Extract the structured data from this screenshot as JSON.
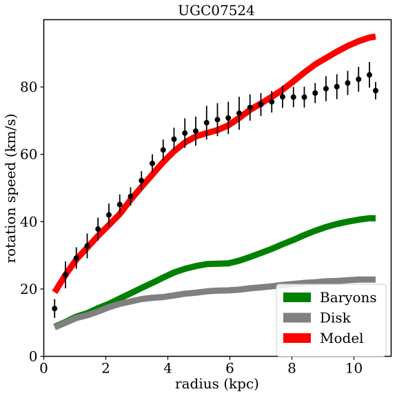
{
  "chart_data": {
    "type": "line",
    "title": "UGC07524",
    "xlabel": "radius (kpc)",
    "ylabel": "rotation speed (km/s)",
    "xlim": [
      0,
      11.2
    ],
    "ylim": [
      0,
      100
    ],
    "xticks": [
      0,
      2,
      4,
      6,
      8,
      10
    ],
    "yticks": [
      0,
      20,
      40,
      60,
      80
    ],
    "legend_position": "lower-right",
    "grid": false,
    "series": [
      {
        "name": "Baryons",
        "kind": "band",
        "color": "#008000",
        "x": [
          0.35,
          0.7,
          1.05,
          1.4,
          1.75,
          2.1,
          2.45,
          2.8,
          3.15,
          3.5,
          3.85,
          4.2,
          4.55,
          4.9,
          5.25,
          5.6,
          5.95,
          6.3,
          6.65,
          7.0,
          7.35,
          7.7,
          8.05,
          8.4,
          8.75,
          9.1,
          9.45,
          9.8,
          10.15,
          10.5,
          10.7
        ],
        "y": [
          8.8,
          10.2,
          11.8,
          12.8,
          14.3,
          15.6,
          17.2,
          18.7,
          20.3,
          21.8,
          23.4,
          24.9,
          26.0,
          26.8,
          27.4,
          27.5,
          27.6,
          28.4,
          29.5,
          30.7,
          31.9,
          33.3,
          34.6,
          36.0,
          37.3,
          38.4,
          39.3,
          40.0,
          40.6,
          41.0,
          41.0
        ]
      },
      {
        "name": "Disk",
        "kind": "band",
        "color": "#808080",
        "x": [
          0.35,
          0.7,
          1.05,
          1.4,
          1.75,
          2.1,
          2.45,
          2.8,
          3.15,
          3.5,
          3.85,
          4.2,
          4.55,
          4.9,
          5.25,
          5.6,
          5.95,
          6.3,
          6.65,
          7.0,
          7.35,
          7.7,
          8.05,
          8.4,
          8.75,
          9.1,
          9.45,
          9.8,
          10.15,
          10.5,
          10.7
        ],
        "y": [
          8.6,
          10.0,
          11.4,
          12.2,
          13.3,
          14.6,
          15.6,
          16.3,
          17.0,
          17.4,
          17.6,
          18.1,
          18.6,
          18.9,
          19.3,
          19.5,
          19.6,
          19.8,
          20.2,
          20.5,
          20.8,
          21.2,
          21.5,
          21.8,
          22.0,
          22.3,
          22.4,
          22.6,
          22.8,
          22.8,
          22.8
        ]
      },
      {
        "name": "Model",
        "kind": "band",
        "color": "#ff0000",
        "x": [
          0.35,
          0.7,
          1.05,
          1.4,
          1.75,
          2.1,
          2.45,
          2.8,
          3.15,
          3.5,
          3.85,
          4.2,
          4.55,
          4.9,
          5.25,
          5.6,
          5.95,
          6.3,
          6.65,
          7.0,
          7.35,
          7.7,
          8.05,
          8.4,
          8.75,
          9.1,
          9.45,
          9.8,
          10.15,
          10.5,
          10.7
        ],
        "y": [
          19.0,
          24.2,
          28.8,
          32.3,
          35.8,
          39.0,
          42.3,
          46.5,
          50.3,
          54.0,
          57.7,
          60.9,
          63.5,
          65.3,
          66.3,
          67.2,
          68.6,
          70.8,
          73.2,
          75.1,
          77.1,
          79.2,
          81.7,
          84.3,
          86.7,
          88.6,
          90.5,
          92.2,
          93.6,
          94.7,
          95.0
        ]
      },
      {
        "name": "data",
        "kind": "errorbar",
        "color": "#000000",
        "x": [
          0.35,
          0.7,
          1.05,
          1.4,
          1.75,
          2.1,
          2.45,
          2.8,
          3.15,
          3.5,
          3.85,
          4.2,
          4.55,
          4.9,
          5.25,
          5.6,
          5.95,
          6.3,
          6.65,
          7.0,
          7.35,
          7.7,
          8.05,
          8.4,
          8.75,
          9.1,
          9.45,
          9.8,
          10.15,
          10.5,
          10.7
        ],
        "y": [
          14.2,
          24.2,
          29.2,
          32.8,
          37.8,
          42.0,
          45.1,
          47.5,
          52.2,
          57.3,
          61.3,
          64.5,
          66.3,
          66.9,
          69.4,
          70.3,
          70.8,
          72.2,
          73.9,
          74.8,
          75.6,
          77.1,
          77.0,
          77.0,
          78.2,
          79.5,
          80.1,
          81.2,
          82.3,
          83.6,
          78.9
        ],
        "err": [
          2.8,
          4.0,
          3.2,
          3.7,
          3.4,
          3.4,
          3.0,
          2.7,
          2.8,
          2.7,
          3.1,
          3.4,
          4.4,
          4.3,
          5.0,
          4.9,
          4.8,
          4.9,
          3.9,
          3.4,
          3.2,
          3.3,
          3.0,
          3.1,
          3.0,
          3.7,
          3.7,
          3.6,
          3.7,
          3.8,
          2.6
        ]
      }
    ]
  }
}
